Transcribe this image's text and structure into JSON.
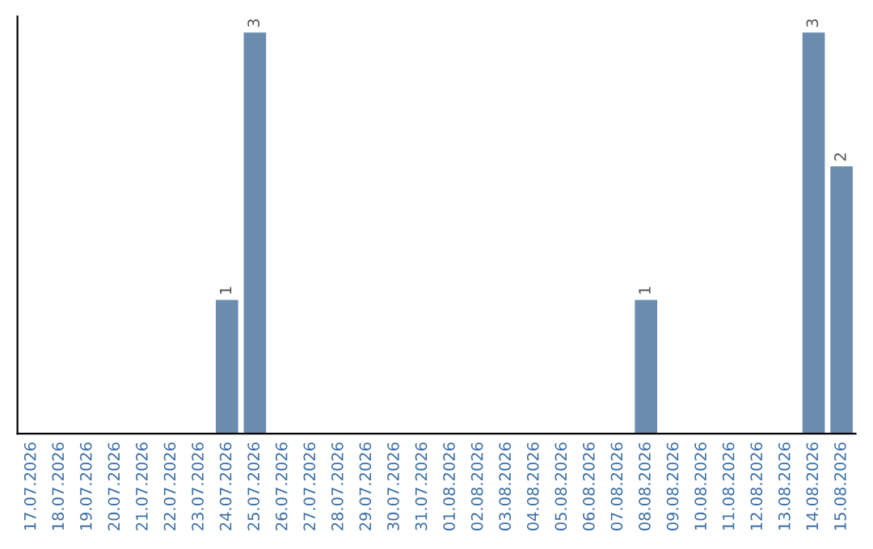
{
  "chart_data": {
    "type": "bar",
    "categories": [
      "17.07.2026",
      "18.07.2026",
      "19.07.2026",
      "20.07.2026",
      "21.07.2026",
      "22.07.2026",
      "23.07.2026",
      "24.07.2026",
      "25.07.2026",
      "26.07.2026",
      "27.07.2026",
      "28.07.2026",
      "29.07.2026",
      "30.07.2026",
      "31.07.2026",
      "01.08.2026",
      "02.08.2026",
      "03.08.2026",
      "04.08.2026",
      "05.08.2026",
      "06.08.2026",
      "07.08.2026",
      "08.08.2026",
      "09.08.2026",
      "10.08.2026",
      "11.08.2026",
      "12.08.2026",
      "13.08.2026",
      "14.08.2026",
      "15.08.2026"
    ],
    "values": [
      0,
      0,
      0,
      0,
      0,
      0,
      0,
      1,
      3,
      0,
      0,
      0,
      0,
      0,
      0,
      0,
      0,
      0,
      0,
      0,
      0,
      0,
      1,
      0,
      0,
      0,
      0,
      0,
      3,
      2
    ],
    "value_labels": [
      null,
      null,
      null,
      null,
      null,
      null,
      null,
      "1",
      "3",
      null,
      null,
      null,
      null,
      null,
      null,
      null,
      null,
      null,
      null,
      null,
      null,
      null,
      "1",
      null,
      null,
      null,
      null,
      null,
      "3",
      "2"
    ],
    "color": "#6b8cae",
    "tick_labels": "x",
    "grid": false
  }
}
